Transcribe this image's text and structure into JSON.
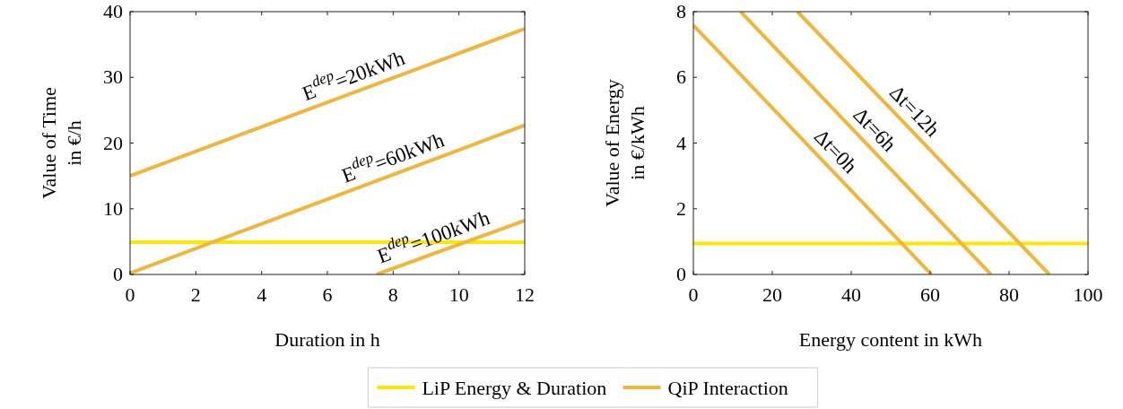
{
  "chart_data": [
    {
      "type": "line",
      "xlabel": "Duration in h",
      "ylabel": "Value of Time\nin €/h",
      "xlim": [
        0,
        12
      ],
      "xticks": [
        0,
        2,
        4,
        6,
        8,
        10,
        12
      ],
      "ylim": [
        0,
        40
      ],
      "yticks": [
        0,
        10,
        20,
        30,
        40
      ],
      "grid": false,
      "legend": "bottom",
      "line_style": "solid",
      "marker": "none",
      "series": [
        {
          "name": "LiP Energy & Duration",
          "color": "#ffe600",
          "x": [
            0,
            12
          ],
          "values": [
            4.9,
            4.9
          ]
        },
        {
          "name": "QiP Interaction",
          "color": "#f2b53c",
          "x": [
            0,
            12
          ],
          "values": [
            15,
            37.4
          ]
        },
        {
          "color": "#f2b53c",
          "x": [
            0,
            12
          ],
          "values": [
            0.2,
            22.7
          ]
        },
        {
          "color": "#f2b53c",
          "x": [
            7.5,
            12
          ],
          "values": [
            0,
            8.2
          ]
        }
      ],
      "annotations": [
        "E$^{dep}$=20kWh",
        "E$^{dep}$=60kWh",
        "E$^{dep}$=100kWh"
      ]
    },
    {
      "type": "line",
      "xlabel": "Energy content in kWh",
      "ylabel": "Value of Energy\nin €/kWh",
      "xlim": [
        0,
        100
      ],
      "xticks": [
        0,
        20,
        40,
        60,
        80,
        100
      ],
      "ylim": [
        0,
        8
      ],
      "yticks": [
        0,
        2,
        4,
        6,
        8
      ],
      "grid": false,
      "legend": "bottom",
      "line_style": "solid",
      "marker": "none",
      "series": [
        {
          "name": "LiP Energy & Duration",
          "color": "#ffe600",
          "x": [
            0,
            100
          ],
          "values": [
            0.94,
            0.94
          ]
        },
        {
          "name": "QiP Interaction",
          "color": "#f2b53c",
          "x": [
            0,
            60.3
          ],
          "values": [
            7.59,
            0
          ]
        },
        {
          "color": "#f2b53c",
          "x": [
            12,
            75.4
          ],
          "values": [
            8,
            0
          ]
        },
        {
          "color": "#f2b53c",
          "x": [
            26.4,
            90.2
          ],
          "values": [
            8,
            0
          ]
        }
      ],
      "annotations": [
        "Δt=0h",
        "Δt=6h",
        "Δt=12h"
      ]
    }
  ]
}
